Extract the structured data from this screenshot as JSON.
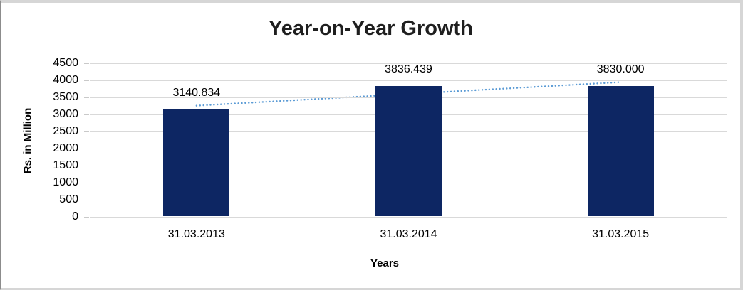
{
  "chart_data": {
    "type": "bar",
    "title": "Year-on-Year Growth",
    "xlabel": "Years",
    "ylabel": "Rs. in Million",
    "categories": [
      "31.03.2013",
      "31.03.2014",
      "31.03.2015"
    ],
    "values": [
      3140.834,
      3836.439,
      3830.0
    ],
    "data_labels": [
      "3140.834",
      "3836.439",
      "3830.000"
    ],
    "y_ticks": [
      0,
      500,
      1000,
      1500,
      2000,
      2500,
      3000,
      3500,
      4000,
      4500
    ],
    "ylim": [
      0,
      4500
    ],
    "grid": true,
    "legend_position": "none",
    "trendline": {
      "type": "linear",
      "style": "dotted"
    },
    "colors": {
      "bar": "#0d2663",
      "trendline": "#5b9bd5",
      "gridline": "#d9d9d9",
      "title_text": "#1f1f1f",
      "axis_text": "#000000"
    }
  }
}
